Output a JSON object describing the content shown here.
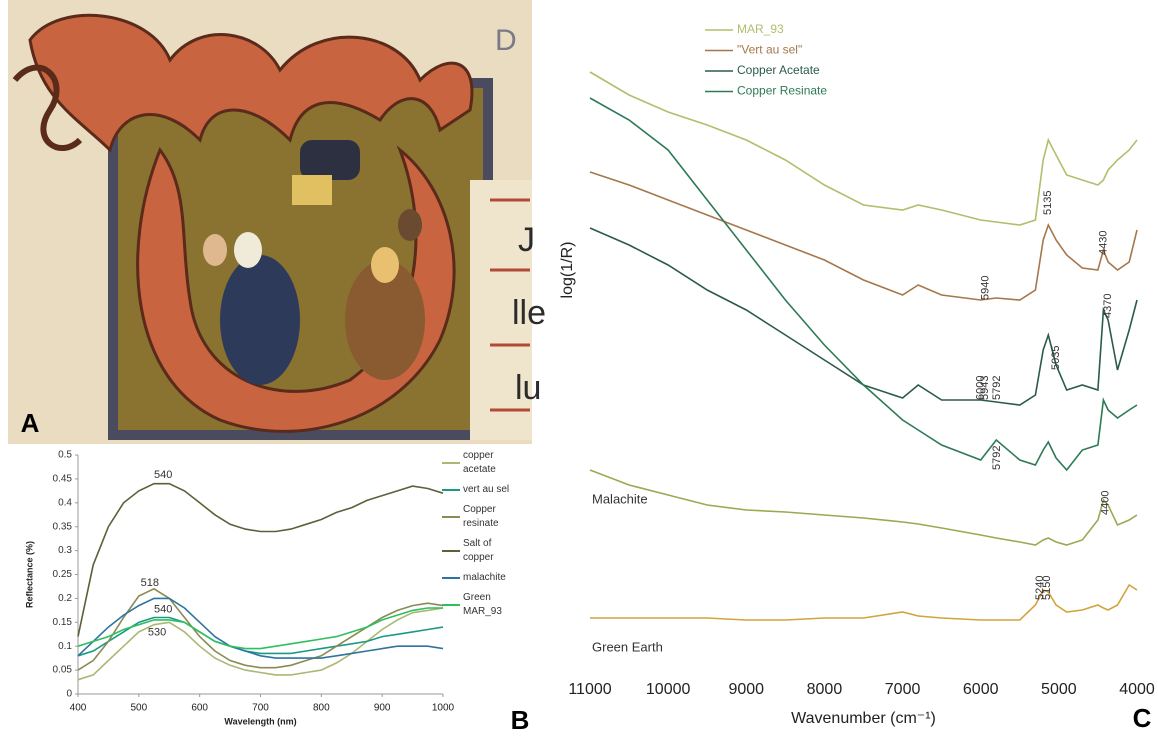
{
  "photo": {
    "panel_label": "A",
    "corner_letter": "D"
  },
  "chart_data": [
    {
      "type": "line",
      "panel_label": "B",
      "xlabel": "Wavelength (nm)",
      "ylabel": "Reflectance (%)",
      "x": [
        400,
        425,
        450,
        475,
        500,
        525,
        550,
        575,
        600,
        625,
        650,
        675,
        700,
        725,
        750,
        775,
        800,
        825,
        850,
        875,
        900,
        925,
        950,
        975,
        1000
      ],
      "xlim": [
        400,
        1000
      ],
      "xticks": [
        400,
        500,
        600,
        700,
        800,
        900,
        1000
      ],
      "ylim": [
        0,
        0.5
      ],
      "yticks": [
        0,
        0.05,
        0.1,
        0.15,
        0.2,
        0.25,
        0.3,
        0.35,
        0.4,
        0.45,
        0.5
      ],
      "legend": "right",
      "series": [
        {
          "name": "copper acetate",
          "color": "#a9b872",
          "values": [
            0.03,
            0.04,
            0.07,
            0.1,
            0.13,
            0.145,
            0.15,
            0.13,
            0.1,
            0.075,
            0.06,
            0.05,
            0.045,
            0.04,
            0.04,
            0.045,
            0.05,
            0.065,
            0.085,
            0.11,
            0.135,
            0.155,
            0.17,
            0.175,
            0.18
          ]
        },
        {
          "name": "vert au sel",
          "color": "#1a9a86",
          "values": [
            0.08,
            0.09,
            0.11,
            0.13,
            0.15,
            0.16,
            0.16,
            0.15,
            0.13,
            0.11,
            0.1,
            0.09,
            0.085,
            0.085,
            0.085,
            0.09,
            0.095,
            0.1,
            0.105,
            0.11,
            0.12,
            0.125,
            0.13,
            0.135,
            0.14
          ]
        },
        {
          "name": "Copper resinate",
          "color": "#8b8a55",
          "values": [
            0.05,
            0.07,
            0.11,
            0.16,
            0.205,
            0.22,
            0.2,
            0.16,
            0.12,
            0.09,
            0.07,
            0.06,
            0.055,
            0.055,
            0.06,
            0.07,
            0.08,
            0.1,
            0.12,
            0.14,
            0.16,
            0.175,
            0.185,
            0.19,
            0.185
          ]
        },
        {
          "name": "Salt of copper",
          "color": "#5a6238",
          "values": [
            0.12,
            0.27,
            0.35,
            0.4,
            0.425,
            0.44,
            0.44,
            0.425,
            0.4,
            0.375,
            0.355,
            0.345,
            0.34,
            0.34,
            0.345,
            0.355,
            0.365,
            0.38,
            0.39,
            0.405,
            0.415,
            0.425,
            0.435,
            0.43,
            0.42
          ]
        },
        {
          "name": "malachite",
          "color": "#2f74a0",
          "values": [
            0.08,
            0.11,
            0.14,
            0.165,
            0.185,
            0.2,
            0.2,
            0.18,
            0.15,
            0.12,
            0.1,
            0.09,
            0.08,
            0.075,
            0.075,
            0.075,
            0.075,
            0.08,
            0.085,
            0.09,
            0.095,
            0.1,
            0.1,
            0.1,
            0.095
          ]
        },
        {
          "name": "Green MAR_93",
          "color": "#2fbf5e",
          "values": [
            0.1,
            0.11,
            0.12,
            0.135,
            0.145,
            0.155,
            0.155,
            0.15,
            0.13,
            0.11,
            0.1,
            0.095,
            0.095,
            0.1,
            0.105,
            0.11,
            0.115,
            0.12,
            0.13,
            0.14,
            0.155,
            0.165,
            0.175,
            0.18,
            0.18
          ]
        }
      ],
      "annotations": [
        {
          "text": "540",
          "x": 540,
          "y": 0.458
        },
        {
          "text": "518",
          "x": 518,
          "y": 0.232
        },
        {
          "text": "540",
          "x": 540,
          "y": 0.177
        },
        {
          "text": "530",
          "x": 530,
          "y": 0.128
        }
      ]
    },
    {
      "type": "line",
      "panel_label": "C",
      "xlabel": "Wavenumber (cm⁻¹)",
      "ylabel": "log(1/R)",
      "x": [
        11000,
        10500,
        10000,
        9500,
        9000,
        8500,
        8000,
        7500,
        7000,
        6800,
        6500,
        6000,
        5800,
        5500,
        5300,
        5200,
        5135,
        5035,
        4900,
        4700,
        4500,
        4430,
        4370,
        4250,
        4100,
        4000
      ],
      "xlim": [
        11000,
        4000
      ],
      "xticks": [
        11000,
        10000,
        9000,
        8000,
        7000,
        6000,
        5000,
        4000
      ],
      "ylim": [
        0,
        660
      ],
      "legend": "upper left",
      "series": [
        {
          "name": "MAR_93",
          "color": "#b3bd6c",
          "values": [
            598,
            575,
            558,
            545,
            530,
            510,
            485,
            465,
            460,
            465,
            460,
            450,
            448,
            445,
            450,
            510,
            530,
            515,
            495,
            490,
            485,
            490,
            500,
            510,
            520,
            530
          ]
        },
        {
          "name": "\"Vert au sel\"",
          "color": "#a5774b",
          "values": [
            498,
            485,
            470,
            455,
            440,
            425,
            410,
            390,
            375,
            385,
            375,
            370,
            372,
            370,
            380,
            430,
            445,
            430,
            415,
            402,
            400,
            420,
            408,
            400,
            408,
            440
          ]
        },
        {
          "name": "Copper Acetate",
          "color": "#2c5b4b",
          "values": [
            442,
            425,
            405,
            380,
            360,
            335,
            310,
            285,
            272,
            285,
            270,
            270,
            268,
            265,
            275,
            320,
            335,
            305,
            280,
            285,
            280,
            360,
            350,
            300,
            340,
            370
          ]
        },
        {
          "name": "Copper Resinate",
          "color": "#2e7a56",
          "values": [
            572,
            550,
            520,
            470,
            420,
            370,
            325,
            285,
            250,
            240,
            225,
            210,
            230,
            210,
            205,
            220,
            228,
            212,
            200,
            220,
            225,
            270,
            260,
            252,
            260,
            265
          ]
        },
        {
          "name": "Malachite",
          "color": "#9aa952",
          "direct_label": true,
          "values": [
            200,
            185,
            175,
            165,
            160,
            158,
            155,
            152,
            148,
            146,
            142,
            135,
            132,
            128,
            125,
            130,
            132,
            128,
            125,
            130,
            150,
            170,
            165,
            145,
            150,
            155
          ]
        },
        {
          "name": "Green Earth",
          "color": "#d2a43c",
          "direct_label": true,
          "values": [
            52,
            52,
            52,
            52,
            50,
            50,
            52,
            52,
            58,
            54,
            52,
            50,
            50,
            50,
            65,
            80,
            78,
            65,
            58,
            60,
            65,
            62,
            60,
            65,
            85,
            80
          ]
        }
      ],
      "annotations": [
        {
          "text": "5135",
          "x": 5135,
          "y": 455
        },
        {
          "text": "4430",
          "x": 4430,
          "y": 415
        },
        {
          "text": "5940",
          "x": 5940,
          "y": 370
        },
        {
          "text": "4370",
          "x": 4370,
          "y": 352
        },
        {
          "text": "5035",
          "x": 5035,
          "y": 300
        },
        {
          "text": "6000",
          "x": 6000,
          "y": 270
        },
        {
          "text": "5943",
          "x": 5943,
          "y": 270
        },
        {
          "text": "5792",
          "x": 5792,
          "y": 270
        },
        {
          "text": "5792",
          "x": 5792,
          "y": 200
        },
        {
          "text": "4400",
          "x": 4400,
          "y": 155
        },
        {
          "text": "5240",
          "x": 5240,
          "y": 70
        },
        {
          "text": "5150",
          "x": 5150,
          "y": 70
        }
      ]
    }
  ]
}
